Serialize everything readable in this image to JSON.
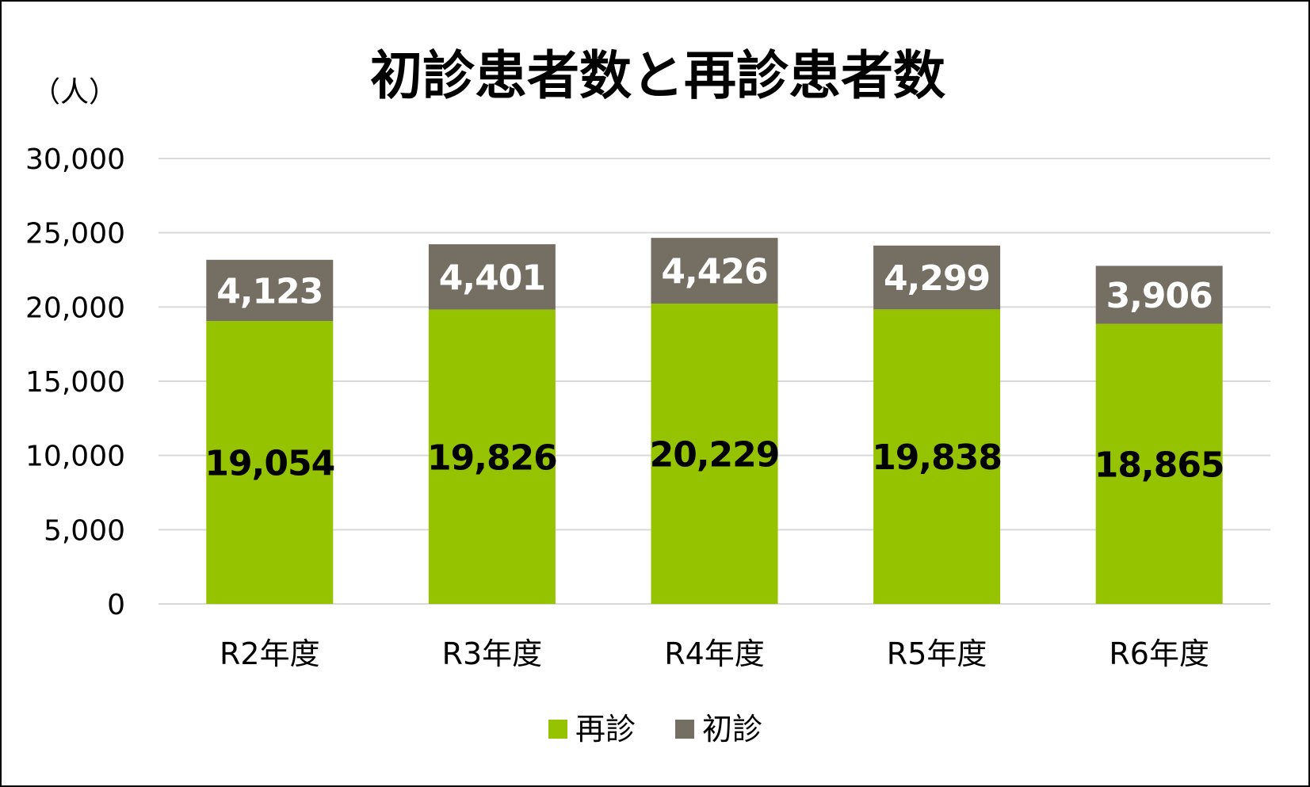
{
  "chart_data": {
    "type": "bar",
    "stacked": true,
    "title": "初診患者数と再診患者数",
    "unit_label": "（人）",
    "categories": [
      "R2年度",
      "R3年度",
      "R4年度",
      "R5年度",
      "R6年度"
    ],
    "series": [
      {
        "name": "再診",
        "values": [
          19054,
          19826,
          20229,
          19838,
          18865
        ],
        "color": "#96c300"
      },
      {
        "name": "初診",
        "values": [
          4123,
          4401,
          4426,
          4299,
          3906
        ],
        "color": "#756f63"
      }
    ],
    "ylim": [
      0,
      30000
    ],
    "yticks": [
      0,
      5000,
      10000,
      15000,
      20000,
      25000,
      30000
    ],
    "grid": true,
    "legend_position": "bottom"
  }
}
